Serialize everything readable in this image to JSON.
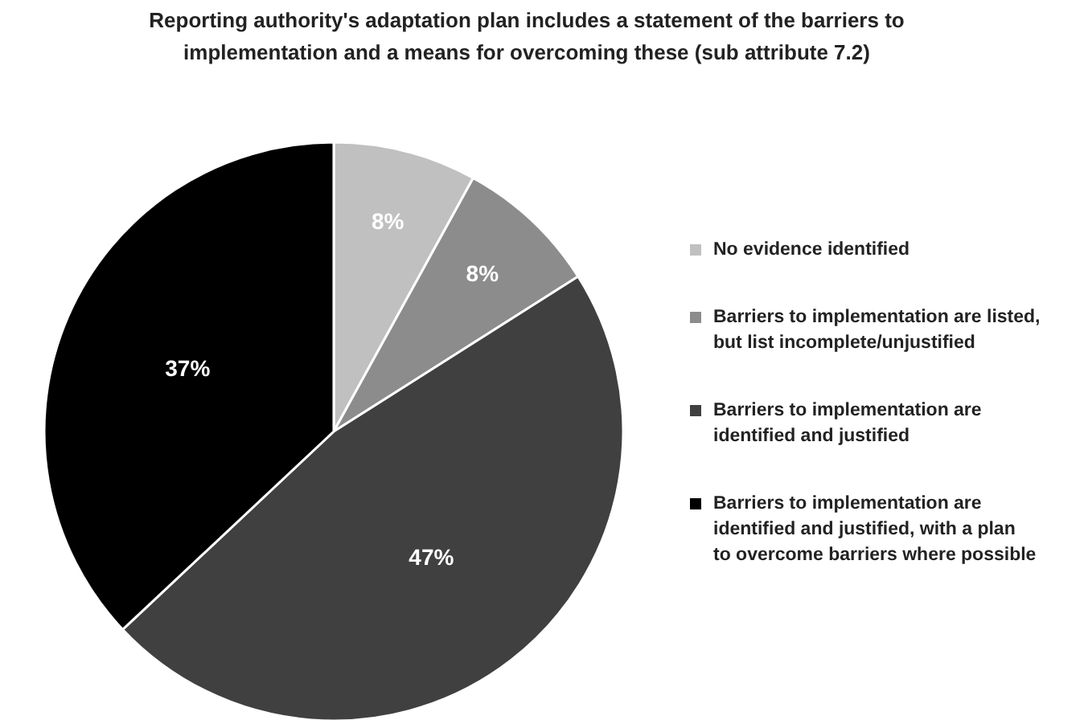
{
  "chart_data": {
    "type": "pie",
    "title": "Reporting authority's adaptation plan includes a statement of the barriers to implementation and a means for overcoming these (sub attribute 7.2)",
    "categories": [
      "No evidence identified",
      "Barriers to implementation are listed, but list incomplete/unjustified",
      "Barriers to implementation are identified and justified",
      "Barriers to implementation are identified and justified, with a plan to overcome barriers where possible"
    ],
    "values": [
      8,
      8,
      47,
      37
    ],
    "colors": [
      "#c0c0c0",
      "#8c8c8c",
      "#404040",
      "#000000"
    ],
    "value_labels": [
      "8%",
      "8%",
      "47%",
      "37%"
    ],
    "legend": "right"
  }
}
